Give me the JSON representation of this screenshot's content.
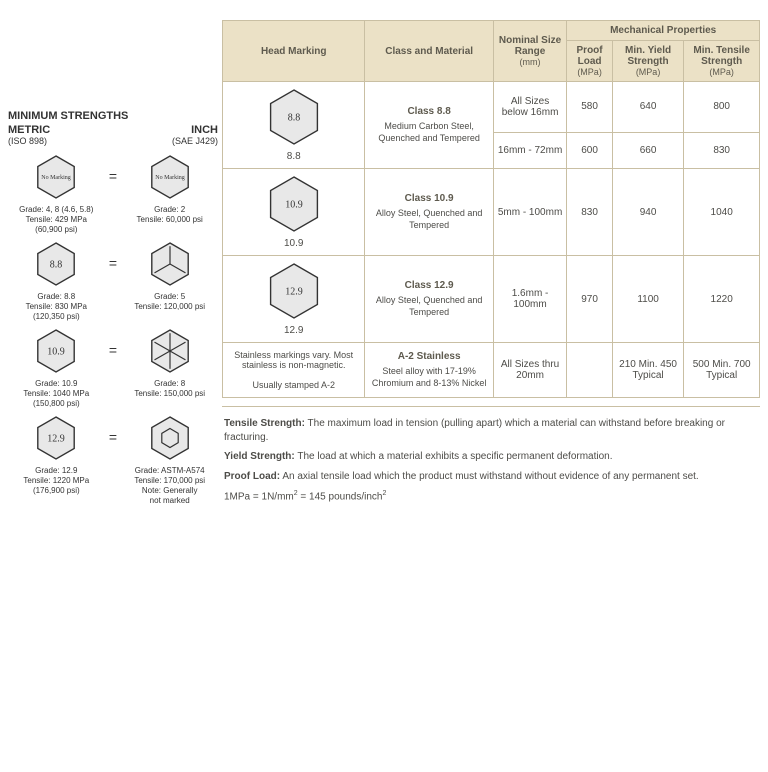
{
  "left": {
    "title": "MINIMUM STRENGTHS",
    "metric": {
      "label": "METRIC",
      "sub": "(ISO 898)"
    },
    "inch": {
      "label": "INCH",
      "sub": "(SAE J429)"
    },
    "rows": [
      {
        "metric_mark": "No Marking",
        "metric_txt": "Grade: 4, 8 (4.6, 5.8)\nTensile: 429 MPa\n(60,900 psi)",
        "inch_mark": "No Marking",
        "inch_txt": "Grade: 2\nTensile: 60,000 psi",
        "inch_radial": 0
      },
      {
        "metric_mark": "8.8",
        "metric_txt": "Grade: 8.8\nTensile: 830 MPa\n(120,350 psi)",
        "inch_mark": "",
        "inch_txt": "Grade: 5\nTensile: 120,000 psi",
        "inch_radial": 3
      },
      {
        "metric_mark": "10.9",
        "metric_txt": "Grade: 10.9\nTensile: 1040 MPa\n(150,800 psi)",
        "inch_mark": "",
        "inch_txt": "Grade: 8\nTensile: 150,000 psi",
        "inch_radial": 6
      },
      {
        "metric_mark": "12.9",
        "metric_txt": "Grade: 12.9\nTensile: 1220 MPa\n(176,900 psi)",
        "inch_mark": "",
        "inch_txt": "Grade: ASTM-A574\nTensile: 170,000 psi\nNote: Generally\nnot marked",
        "inch_socket": true
      }
    ]
  },
  "table": {
    "headers": {
      "marking": "Head Marking",
      "class": "Class and Material",
      "size": "Nominal Size Range",
      "size_unit": "(mm)",
      "mech": "Mechanical Properties",
      "proof": "Proof Load",
      "proof_unit": "(MPa)",
      "yield": "Min. Yield Strength",
      "yield_unit": "(MPa)",
      "tensile": "Min. Tensile Strength",
      "tensile_unit": "(MPa)"
    },
    "rows": [
      {
        "mark_hex": "8.8",
        "mark_label": "8.8",
        "class_title": "Class 8.8",
        "class_desc": "Medium Carbon Steel, Quenched and Tempered",
        "sizes": [
          {
            "range": "All Sizes below 16mm",
            "proof": "580",
            "yield": "640",
            "tensile": "800"
          },
          {
            "range": "16mm - 72mm",
            "proof": "600",
            "yield": "660",
            "tensile": "830"
          }
        ]
      },
      {
        "mark_hex": "10.9",
        "mark_label": "10.9",
        "class_title": "Class 10.9",
        "class_desc": "Alloy Steel, Quenched and Tempered",
        "sizes": [
          {
            "range": "5mm - 100mm",
            "proof": "830",
            "yield": "940",
            "tensile": "1040"
          }
        ]
      },
      {
        "mark_hex": "12.9",
        "mark_label": "12.9",
        "class_title": "Class 12.9",
        "class_desc": "Alloy Steel, Quenched and Tempered",
        "sizes": [
          {
            "range": "1.6mm - 100mm",
            "proof": "970",
            "yield": "1100",
            "tensile": "1220"
          }
        ]
      },
      {
        "mark_text": "Stainless markings vary. Most stainless is non-magnetic.\n\nUsually stamped A-2",
        "class_title": "A-2 Stainless",
        "class_desc": "Steel alloy with 17-19% Chromium and 8-13% Nickel",
        "sizes": [
          {
            "range": "All Sizes thru 20mm",
            "proof": "",
            "yield": "210 Min. 450 Typical",
            "tensile": "500 Min. 700 Typical"
          }
        ]
      }
    ]
  },
  "defs": {
    "tensile": "Tensile Strength: The maximum load in tension (pulling apart) which a material can withstand before breaking or fracturing.",
    "yield": "Yield Strength: The load at which a material exhibits a specific permanent deformation.",
    "proof": "Proof Load: An axial tensile load which the product must withstand without evidence of any permanent set.",
    "conv": "1MPa = 1N/mm² = 145 pounds/inch²"
  },
  "style": {
    "hex_fill": "#e8e8e8",
    "hex_stroke": "#333333",
    "header_bg": "#ebe1c6",
    "border": "#c9bfa3"
  }
}
